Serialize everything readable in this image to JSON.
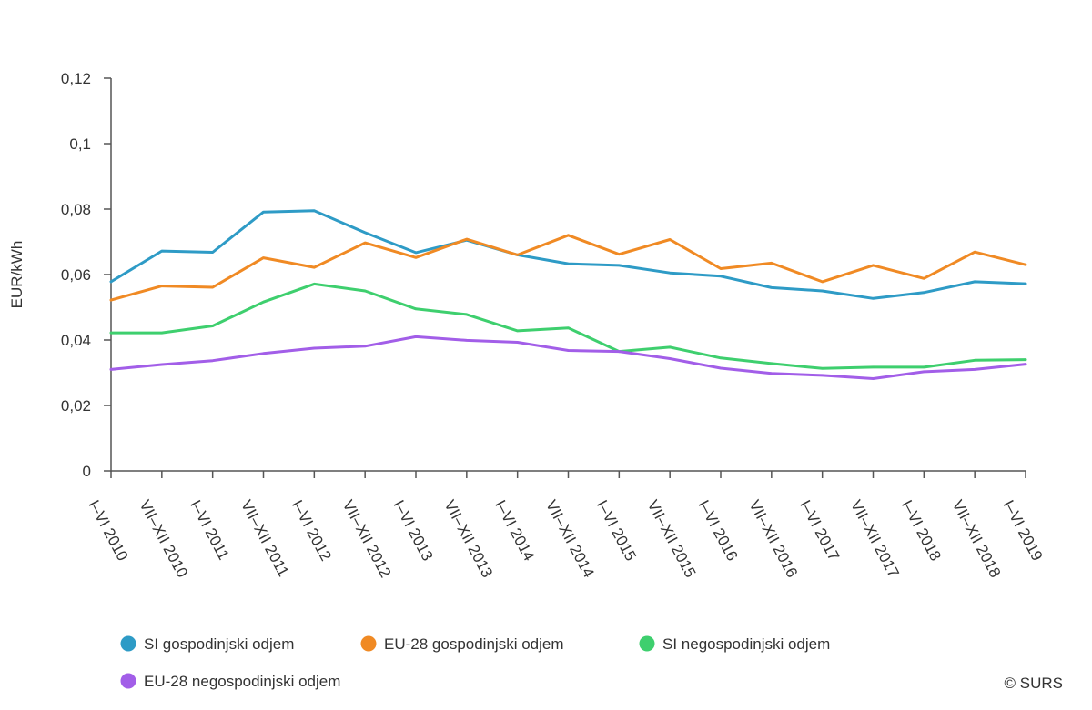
{
  "chart_data": {
    "type": "line",
    "title": "",
    "xlabel": "",
    "ylabel": "EUR/kWh",
    "ylim": [
      0,
      0.12
    ],
    "yticks": [
      "0",
      "0,02",
      "0,04",
      "0,06",
      "0,08",
      "0,1",
      "0,12"
    ],
    "grid": false,
    "legend_position": "bottom-left",
    "categories": [
      "I–VI 2010",
      "VII–XII 2010",
      "I–VI 2011",
      "VII–XII 2011",
      "I–VI 2012",
      "VII–XII 2012",
      "I–VI 2013",
      "VII–XII 2013",
      "I–VI 2014",
      "VII–XII 2014",
      "I–VI 2015",
      "VII–XII 2015",
      "I–VI 2016",
      "VII–XII 2016",
      "I–VI 2017",
      "VII–XII 2017",
      "I–VI 2018",
      "VII–XII 2018",
      "I–VI 2019"
    ],
    "series": [
      {
        "name": "SI gospodinjski odjem",
        "color": "#2e9bc6",
        "values": [
          0.0578,
          0.0672,
          0.0668,
          0.0791,
          0.0795,
          0.0728,
          0.0667,
          0.0705,
          0.066,
          0.0633,
          0.0628,
          0.0605,
          0.0595,
          0.056,
          0.055,
          0.0527,
          0.0545,
          0.0578,
          0.0572
        ]
      },
      {
        "name": "EU-28 gospodinjski odjem",
        "color": "#f08a24",
        "values": [
          0.0522,
          0.0565,
          0.0561,
          0.0651,
          0.0622,
          0.0697,
          0.0652,
          0.0708,
          0.066,
          0.072,
          0.0662,
          0.0707,
          0.0618,
          0.0635,
          0.0578,
          0.0628,
          0.0588,
          0.0669,
          0.063
        ]
      },
      {
        "name": "SI negospodinjski odjem",
        "color": "#3ecf6e",
        "values": [
          0.0422,
          0.0422,
          0.0443,
          0.0516,
          0.0571,
          0.055,
          0.0495,
          0.0478,
          0.0428,
          0.0437,
          0.0365,
          0.0378,
          0.0345,
          0.0328,
          0.0313,
          0.0317,
          0.0317,
          0.0338,
          0.034
        ]
      },
      {
        "name": "EU-28 negospodinjski odjem",
        "color": "#a25ee8",
        "values": [
          0.031,
          0.0325,
          0.0337,
          0.0359,
          0.0375,
          0.0381,
          0.041,
          0.0399,
          0.0393,
          0.0368,
          0.0365,
          0.0343,
          0.0314,
          0.0298,
          0.0292,
          0.0282,
          0.0303,
          0.031,
          0.0326
        ]
      }
    ]
  },
  "credit": "© SURS"
}
